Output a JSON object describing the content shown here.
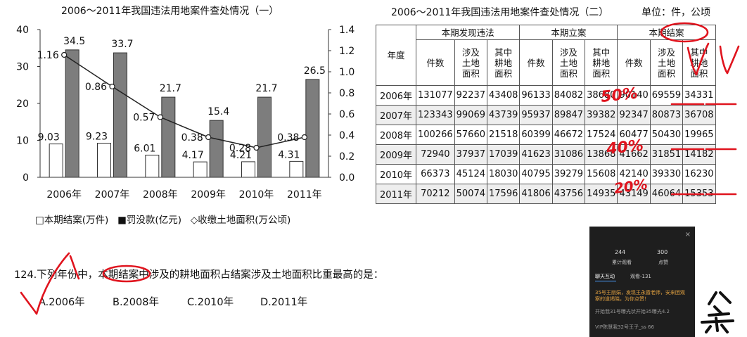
{
  "chart_data": {
    "type": "bar",
    "title": "2006～2011年我国违法用地案件查处情况（一）",
    "categories": [
      "2006年",
      "2007年",
      "2008年",
      "2009年",
      "2010年",
      "2011年"
    ],
    "series": [
      {
        "name": "本期结案(万件)",
        "values": [
          9.03,
          9.23,
          6.01,
          4.17,
          4.21,
          4.31
        ],
        "axis": "left",
        "style": "white-bar"
      },
      {
        "name": "罚没款(亿元)",
        "values": [
          34.5,
          33.7,
          21.7,
          15.4,
          21.7,
          26.5
        ],
        "axis": "left",
        "style": "gray-bar"
      },
      {
        "name": "收缴土地面积(万公顷)",
        "values": [
          1.16,
          0.86,
          0.57,
          0.38,
          0.28,
          0.38
        ],
        "axis": "right",
        "style": "line"
      }
    ],
    "value_labels": {
      "white": [
        "9.03",
        "9.23",
        "6.01",
        "4.17",
        "4.21",
        "4.31"
      ],
      "gray": [
        "34.5",
        "33.7",
        "21.7",
        "15.4",
        "21.7",
        "26.5"
      ],
      "line": [
        "1.16",
        "0.86",
        "0.57",
        "0.38",
        "0.28",
        "0.38"
      ]
    },
    "ylim": [
      0,
      40
    ],
    "y2lim": [
      0,
      1.4
    ],
    "y_ticks": [
      "0",
      "10",
      "20",
      "30",
      "40"
    ],
    "y2_ticks": [
      "0.0",
      "0.2",
      "0.4",
      "0.6",
      "0.8",
      "1.0",
      "1.2",
      "1.4"
    ],
    "legend": [
      "□本期结案(万件)",
      "■罚没款(亿元)",
      "◇收缴土地面积(万公顷)"
    ]
  },
  "table2": {
    "title": "2006～2011年我国违法用地案件查处情况（二）",
    "unit": "单位：件，公顷",
    "year_header": "年度",
    "groups": [
      "本期发现违法",
      "本期立案",
      "本期结案"
    ],
    "subheaders": [
      [
        "件数"
      ],
      [
        "涉及",
        "土地",
        "面积"
      ],
      [
        "其中",
        "耕地",
        "面积"
      ]
    ],
    "rows": [
      [
        "2006年",
        "131077",
        "92237",
        "43408",
        "96133",
        "84082",
        "38680",
        "90140",
        "69559",
        "34331"
      ],
      [
        "2007年",
        "123343",
        "99069",
        "43739",
        "95937",
        "89847",
        "39382",
        "92347",
        "80873",
        "36708"
      ],
      [
        "2008年",
        "100266",
        "57660",
        "21518",
        "60399",
        "46672",
        "17524",
        "60477",
        "50430",
        "19965"
      ],
      [
        "2009年",
        "72940",
        "37937",
        "17039",
        "41623",
        "31086",
        "13868",
        "41662",
        "31851",
        "14182"
      ],
      [
        "2010年",
        "66373",
        "45124",
        "18030",
        "40795",
        "39279",
        "15608",
        "42140",
        "39330",
        "16230"
      ],
      [
        "2011年",
        "70212",
        "50074",
        "17596",
        "41806",
        "43756",
        "14935",
        "43149",
        "46064",
        "15353"
      ]
    ]
  },
  "question": {
    "text": "124.下列年份中，本期结案中涉及的耕地面积占结案涉及土地面积比重最高的是：",
    "options": [
      "A.2006年",
      "B.2008年",
      "C.2010年",
      "D.2011年"
    ]
  },
  "annotations": [
    "50%",
    "40%",
    "20%"
  ],
  "live_panel": {
    "stats": [
      {
        "value": "244",
        "label": "累计观看"
      },
      {
        "value": "300",
        "label": "点赞"
      }
    ],
    "tabs": [
      "聊天互动",
      "观看-131"
    ],
    "messages": [
      "35号王丽娟，发现王永霞老师，安来团观察的道揭晓，为你点赞！",
      "开始我31号曝光状开始35曝光4.2",
      "VIP陈慧我32号王子_ss 66"
    ],
    "close": "×"
  },
  "colors": {
    "gray_bar": "#7d7d7d",
    "ink": "#e0141e",
    "panel_bg": "#1e1e1e",
    "accent": "#e0a040"
  }
}
